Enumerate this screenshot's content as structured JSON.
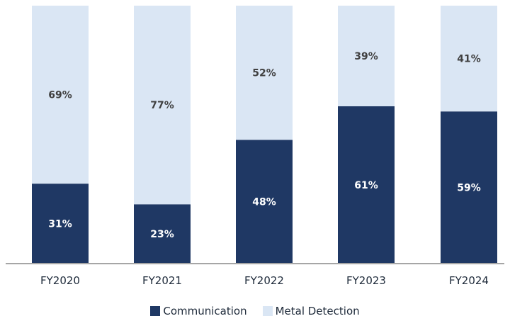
{
  "chart_data": {
    "type": "bar",
    "stacked": true,
    "categories": [
      "FY2020",
      "FY2021",
      "FY2022",
      "FY2023",
      "FY2024"
    ],
    "series": [
      {
        "name": "Communication",
        "values": [
          31,
          23,
          48,
          61,
          59
        ],
        "labels": [
          "31%",
          "23%",
          "48%",
          "61%",
          "59%"
        ],
        "color": "#1f3864",
        "label_color": "#ffffff"
      },
      {
        "name": "Metal Detection",
        "values": [
          69,
          77,
          52,
          39,
          41
        ],
        "labels": [
          "69%",
          "77%",
          "52%",
          "39%",
          "41%"
        ],
        "color": "#dae6f4",
        "label_color": "#404040"
      }
    ],
    "ylim": [
      0,
      100
    ],
    "grid": false,
    "legend_position": "bottom",
    "axis_color": "#a6a6a6"
  }
}
